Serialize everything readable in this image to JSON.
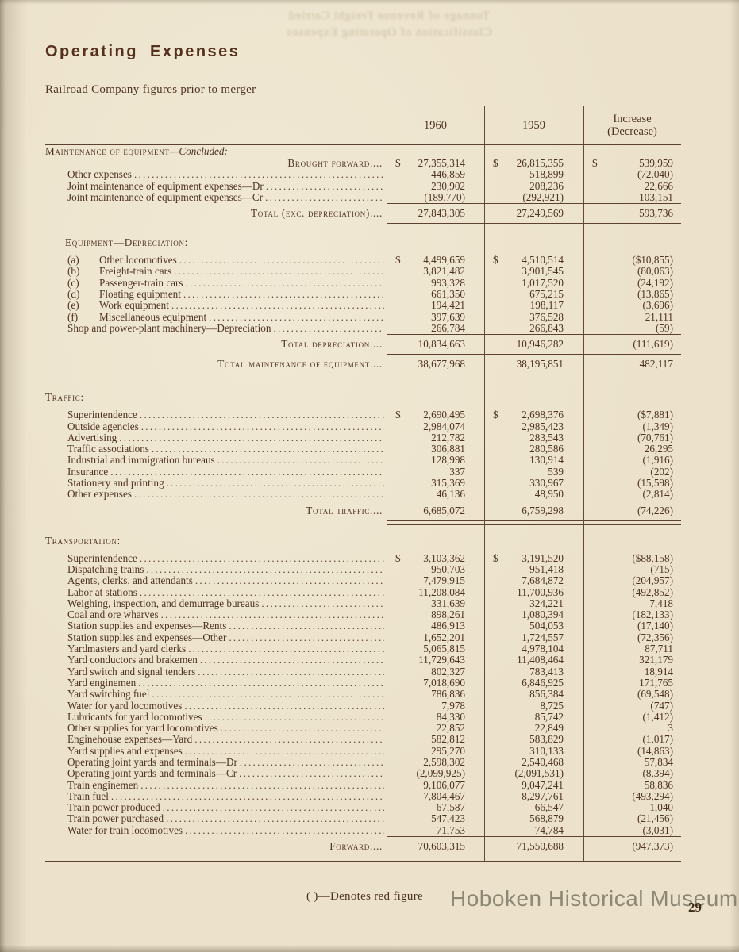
{
  "page": {
    "title": "Operating Expenses",
    "subtitle": "Railroad Company figures prior to merger",
    "footnote": "( )—Denotes red figure",
    "watermark": "Hoboken Historical Museum",
    "page_number": "29",
    "bleed_through_line1": "Tonnage of Revenue Freight Carried",
    "bleed_through_line2": "Classification of Operating Expenses"
  },
  "colors": {
    "paper": "#ece2cb",
    "ink": "#4e3422",
    "rule": "#5d4231",
    "watermark_gray": "#86816f"
  },
  "table": {
    "header": {
      "col_1960": "1960",
      "col_1959": "1959",
      "col_inc_line1": "Increase",
      "col_inc_line2": "(Decrease)"
    },
    "rows": [
      {
        "t": "sec",
        "main": "Maintenance of equipment",
        "it": "—Concluded:",
        "indent": 0
      },
      {
        "t": "carry",
        "label": "Brought forward....",
        "v": [
          "$ 27,355,314",
          "$ 26,815,355",
          "$ 539,959"
        ]
      },
      {
        "t": "item",
        "label": "Other expenses",
        "v": [
          "446,859",
          "518,899",
          "(72,040)"
        ]
      },
      {
        "t": "item",
        "label": "Joint maintenance of equipment expenses—Dr",
        "v": [
          "230,902",
          "208,236",
          "22,666"
        ]
      },
      {
        "t": "item",
        "label": "Joint maintenance of equipment expenses—Cr",
        "v": [
          "(189,770)",
          "(292,921)",
          "103,151"
        ]
      },
      {
        "t": "rule"
      },
      {
        "t": "total",
        "label": "Total (exc. depreciation)....",
        "v": [
          "27,843,305",
          "27,249,569",
          "593,736"
        ]
      },
      {
        "t": "rule"
      },
      {
        "t": "gap",
        "h": 16
      },
      {
        "t": "sec",
        "main": "Equipment—Depreciation:",
        "indent": 25
      },
      {
        "t": "gap",
        "h": 7
      },
      {
        "t": "item",
        "prefix": "(a)",
        "label": "Other locomotives",
        "v": [
          "$ 4,499,659",
          "$ 4,510,514",
          "($10,855)"
        ]
      },
      {
        "t": "item",
        "prefix": "(b)",
        "label": "Freight-train cars",
        "v": [
          "3,821,482",
          "3,901,545",
          "(80,063)"
        ]
      },
      {
        "t": "item",
        "prefix": "(c)",
        "label": "Passenger-train cars",
        "v": [
          "993,328",
          "1,017,520",
          "(24,192)"
        ]
      },
      {
        "t": "item",
        "prefix": "(d)",
        "label": "Floating equipment",
        "v": [
          "661,350",
          "675,215",
          "(13,865)"
        ]
      },
      {
        "t": "item",
        "prefix": "(e)",
        "label": "Work equipment",
        "v": [
          "194,421",
          "198,117",
          "(3,696)"
        ]
      },
      {
        "t": "item",
        "prefix": "(f)",
        "label": "Miscellaneous equipment",
        "v": [
          "397,639",
          "376,528",
          "21,111"
        ]
      },
      {
        "t": "item",
        "label": "Shop and power-plant machinery—Depreciation",
        "v": [
          "266,784",
          "266,843",
          "(59)"
        ]
      },
      {
        "t": "rule"
      },
      {
        "t": "total",
        "label": "Total depreciation....",
        "v": [
          "10,834,663",
          "10,946,282",
          "(111,619)"
        ]
      },
      {
        "t": "rule"
      },
      {
        "t": "total",
        "label": "Total maintenance of equipment....",
        "v": [
          "38,677,968",
          "38,195,851",
          "482,117"
        ]
      },
      {
        "t": "rule2"
      },
      {
        "t": "gap",
        "h": 16
      },
      {
        "t": "sec",
        "main": "Traffic:",
        "indent": 0
      },
      {
        "t": "gap",
        "h": 7
      },
      {
        "t": "item",
        "label": "Superintendence",
        "v": [
          "$ 2,690,495",
          "$ 2,698,376",
          "($7,881)"
        ]
      },
      {
        "t": "item",
        "label": "Outside agencies",
        "v": [
          "2,984,074",
          "2,985,423",
          "(1,349)"
        ]
      },
      {
        "t": "item",
        "label": "Advertising",
        "v": [
          "212,782",
          "283,543",
          "(70,761)"
        ]
      },
      {
        "t": "item",
        "label": "Traffic associations",
        "v": [
          "306,881",
          "280,586",
          "26,295"
        ]
      },
      {
        "t": "item",
        "label": "Industrial and immigration bureaus",
        "v": [
          "128,998",
          "130,914",
          "(1,916)"
        ]
      },
      {
        "t": "item",
        "label": "Insurance",
        "v": [
          "337",
          "539",
          "(202)"
        ]
      },
      {
        "t": "item",
        "label": "Stationery and printing",
        "v": [
          "315,369",
          "330,967",
          "(15,598)"
        ]
      },
      {
        "t": "item",
        "label": "Other expenses",
        "v": [
          "46,136",
          "48,950",
          "(2,814)"
        ]
      },
      {
        "t": "rule"
      },
      {
        "t": "total",
        "label": "Total traffic....",
        "v": [
          "6,685,072",
          "6,759,298",
          "(74,226)"
        ]
      },
      {
        "t": "rule2"
      },
      {
        "t": "gap",
        "h": 12
      },
      {
        "t": "sec",
        "main": "Transportation:",
        "indent": 0
      },
      {
        "t": "gap",
        "h": 7
      },
      {
        "t": "item",
        "label": "Superintendence",
        "v": [
          "$ 3,103,362",
          "$ 3,191,520",
          "($88,158)"
        ]
      },
      {
        "t": "item",
        "label": "Dispatching trains",
        "v": [
          "950,703",
          "951,418",
          "(715)"
        ]
      },
      {
        "t": "item",
        "label": "Agents, clerks, and attendants",
        "v": [
          "7,479,915",
          "7,684,872",
          "(204,957)"
        ]
      },
      {
        "t": "item",
        "label": "Labor at stations",
        "v": [
          "11,208,084",
          "11,700,936",
          "(492,852)"
        ]
      },
      {
        "t": "item",
        "label": "Weighing, inspection, and demurrage bureaus",
        "v": [
          "331,639",
          "324,221",
          "7,418"
        ]
      },
      {
        "t": "item",
        "label": "Coal and ore wharves",
        "v": [
          "898,261",
          "1,080,394",
          "(182,133)"
        ]
      },
      {
        "t": "item",
        "label": "Station supplies and expenses—Rents",
        "v": [
          "486,913",
          "504,053",
          "(17,140)"
        ]
      },
      {
        "t": "item",
        "label": "Station supplies and expenses—Other",
        "v": [
          "1,652,201",
          "1,724,557",
          "(72,356)"
        ]
      },
      {
        "t": "item",
        "label": "Yardmasters and yard clerks",
        "v": [
          "5,065,815",
          "4,978,104",
          "87,711"
        ]
      },
      {
        "t": "item",
        "label": "Yard conductors and brakemen",
        "v": [
          "11,729,643",
          "11,408,464",
          "321,179"
        ]
      },
      {
        "t": "item",
        "label": "Yard switch and signal tenders",
        "v": [
          "802,327",
          "783,413",
          "18,914"
        ]
      },
      {
        "t": "item",
        "label": "Yard enginemen",
        "v": [
          "7,018,690",
          "6,846,925",
          "171,765"
        ]
      },
      {
        "t": "item",
        "label": "Yard switching fuel",
        "v": [
          "786,836",
          "856,384",
          "(69,548)"
        ]
      },
      {
        "t": "item",
        "label": "Water for yard locomotives",
        "v": [
          "7,978",
          "8,725",
          "(747)"
        ]
      },
      {
        "t": "item",
        "label": "Lubricants for yard locomotives",
        "v": [
          "84,330",
          "85,742",
          "(1,412)"
        ]
      },
      {
        "t": "item",
        "label": "Other supplies for yard locomotives",
        "v": [
          "22,852",
          "22,849",
          "3"
        ]
      },
      {
        "t": "item",
        "label": "Enginehouse expenses—Yard",
        "v": [
          "582,812",
          "583,829",
          "(1,017)"
        ]
      },
      {
        "t": "item",
        "label": "Yard supplies and expenses",
        "v": [
          "295,270",
          "310,133",
          "(14,863)"
        ]
      },
      {
        "t": "item",
        "label": "Operating joint yards and terminals—Dr",
        "v": [
          "2,598,302",
          "2,540,468",
          "57,834"
        ]
      },
      {
        "t": "item",
        "label": "Operating joint yards and terminals—Cr",
        "v": [
          "(2,099,925)",
          "(2,091,531)",
          "(8,394)"
        ]
      },
      {
        "t": "item",
        "label": "Train enginemen",
        "v": [
          "9,106,077",
          "9,047,241",
          "58,836"
        ]
      },
      {
        "t": "item",
        "label": "Train fuel",
        "v": [
          "7,804,467",
          "8,297,761",
          "(493,294)"
        ]
      },
      {
        "t": "item",
        "label": "Train power produced",
        "v": [
          "67,587",
          "66,547",
          "1,040"
        ]
      },
      {
        "t": "item",
        "label": "Train power purchased",
        "v": [
          "547,423",
          "568,879",
          "(21,456)"
        ]
      },
      {
        "t": "item",
        "label": "Water for train locomotives",
        "v": [
          "71,753",
          "74,784",
          "(3,031)"
        ]
      },
      {
        "t": "rule"
      },
      {
        "t": "total",
        "label": "Forward....",
        "v": [
          "70,603,315",
          "71,550,688",
          "(947,373)"
        ]
      }
    ]
  }
}
